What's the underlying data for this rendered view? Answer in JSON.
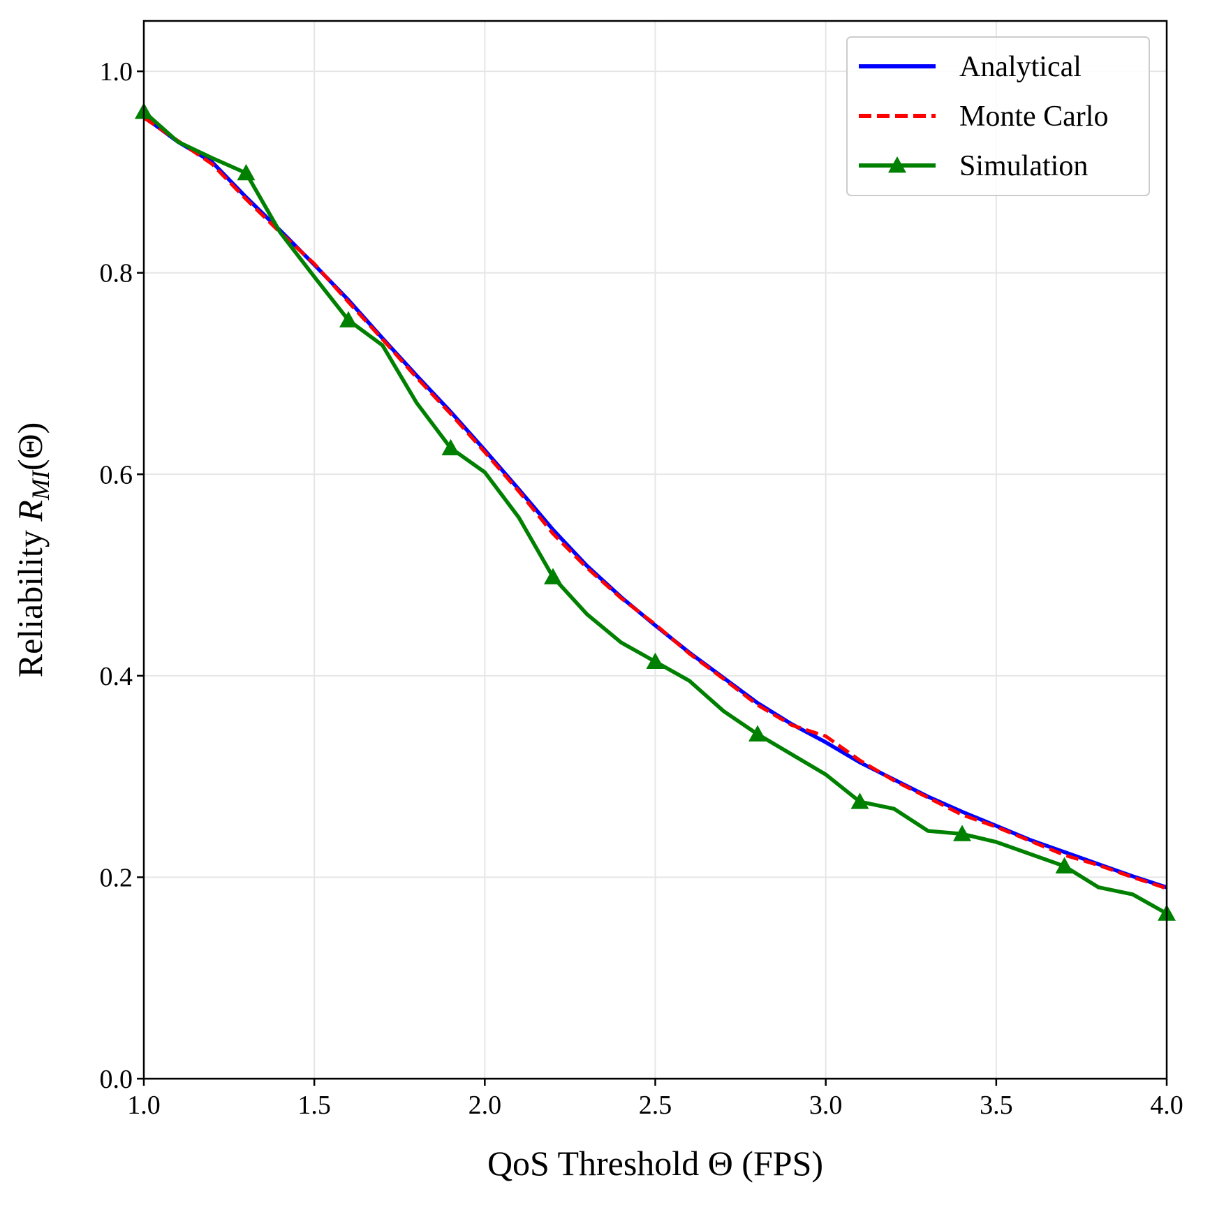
{
  "chart_data": {
    "type": "line",
    "title": "",
    "xlabel": "QoS Threshold Θ (FPS)",
    "ylabel": {
      "prefix": "Reliability ",
      "var": "R",
      "sub": "MI",
      "suffix": "(Θ)"
    },
    "xlim": [
      1.0,
      4.0
    ],
    "ylim": [
      0.0,
      1.05
    ],
    "xticks": [
      1.0,
      1.5,
      2.0,
      2.5,
      3.0,
      3.5,
      4.0
    ],
    "xtick_labels": [
      "1.0",
      "1.5",
      "2.0",
      "2.5",
      "3.0",
      "3.5",
      "4.0"
    ],
    "yticks": [
      0.0,
      0.2,
      0.4,
      0.6,
      0.8,
      1.0
    ],
    "ytick_labels": [
      "0.0",
      "0.2",
      "0.4",
      "0.6",
      "0.8",
      "1.0"
    ],
    "grid": true,
    "legend_position": "top-right",
    "x": [
      1.0,
      1.1,
      1.2,
      1.3,
      1.4,
      1.5,
      1.6,
      1.7,
      1.8,
      1.9,
      2.0,
      2.1,
      2.2,
      2.3,
      2.4,
      2.5,
      2.6,
      2.7,
      2.8,
      2.9,
      3.0,
      3.1,
      3.2,
      3.3,
      3.4,
      3.5,
      3.6,
      3.7,
      3.8,
      3.9,
      4.0
    ],
    "series": [
      {
        "name": "Analytical",
        "color": "#0000ff",
        "style": "solid",
        "marker": "none",
        "values": [
          0.955,
          0.93,
          0.91,
          0.875,
          0.842,
          0.808,
          0.773,
          0.735,
          0.698,
          0.662,
          0.624,
          0.585,
          0.545,
          0.509,
          0.478,
          0.45,
          0.423,
          0.398,
          0.373,
          0.352,
          0.334,
          0.314,
          0.297,
          0.28,
          0.265,
          0.251,
          0.237,
          0.225,
          0.213,
          0.201,
          0.19
        ]
      },
      {
        "name": "Monte Carlo",
        "color": "#ff0000",
        "style": "dashed",
        "marker": "none",
        "values": [
          0.954,
          0.931,
          0.908,
          0.873,
          0.84,
          0.809,
          0.771,
          0.734,
          0.696,
          0.66,
          0.622,
          0.583,
          0.541,
          0.507,
          0.477,
          0.451,
          0.422,
          0.397,
          0.371,
          0.351,
          0.34,
          0.316,
          0.296,
          0.279,
          0.262,
          0.25,
          0.236,
          0.222,
          0.212,
          0.2,
          0.189
        ]
      },
      {
        "name": "Simulation",
        "color": "#008000",
        "style": "solid",
        "marker": "triangle",
        "marker_every": 3,
        "values": [
          0.96,
          0.93,
          0.914,
          0.899,
          0.84,
          0.796,
          0.753,
          0.728,
          0.671,
          0.626,
          0.602,
          0.557,
          0.498,
          0.461,
          0.433,
          0.414,
          0.395,
          0.365,
          0.342,
          0.322,
          0.302,
          0.275,
          0.268,
          0.246,
          0.243,
          0.235,
          0.223,
          0.211,
          0.19,
          0.183,
          0.164
        ]
      }
    ]
  }
}
